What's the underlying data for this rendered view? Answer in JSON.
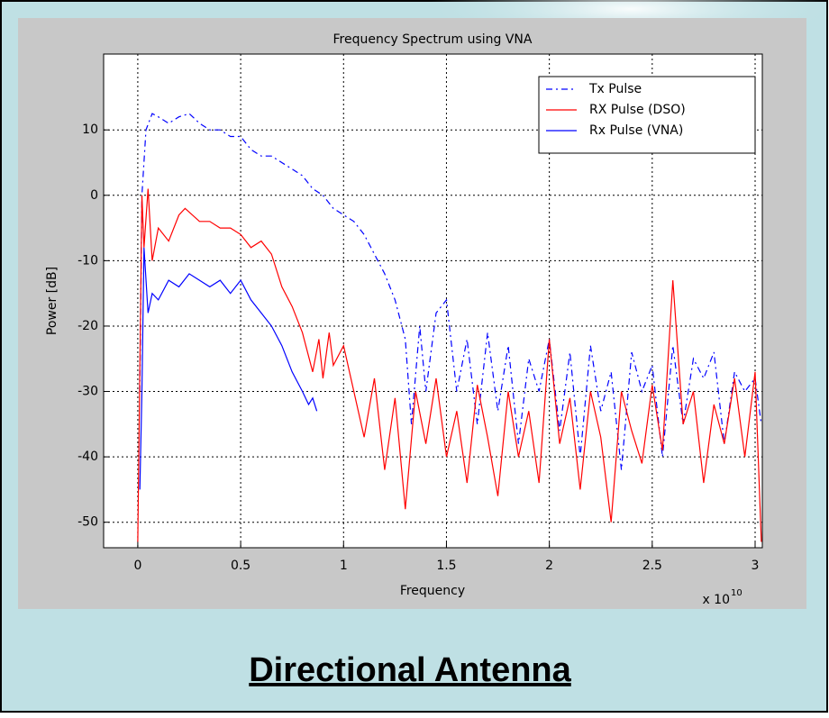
{
  "chart_data": {
    "type": "line",
    "title": "Frequency Spectrum using VNA",
    "xlabel": "Frequency",
    "ylabel": "Power [dB]",
    "x_offset_text": "x 10",
    "x_offset_exponent": "10",
    "xlim": [
      -0.166,
      3.035
    ],
    "ylim": [
      -53.9,
      21.6
    ],
    "xticks": [
      0,
      0.5,
      1,
      1.5,
      2,
      2.5,
      3
    ],
    "yticks": [
      -50,
      -40,
      -30,
      -20,
      -10,
      0,
      10
    ],
    "grid": true,
    "legend": "northeast",
    "series": [
      {
        "name": "Tx Pulse",
        "color": "#0000ff",
        "linestyle": "dashdot",
        "x": [
          0.01,
          0.02,
          0.04,
          0.07,
          0.1,
          0.15,
          0.2,
          0.25,
          0.3,
          0.35,
          0.4,
          0.45,
          0.5,
          0.55,
          0.6,
          0.65,
          0.7,
          0.75,
          0.8,
          0.85,
          0.9,
          0.95,
          1.0,
          1.05,
          1.1,
          1.15,
          1.2,
          1.25,
          1.3,
          1.33,
          1.37,
          1.4,
          1.45,
          1.5,
          1.55,
          1.6,
          1.65,
          1.7,
          1.75,
          1.8,
          1.85,
          1.9,
          1.95,
          2.0,
          2.05,
          2.1,
          2.15,
          2.2,
          2.25,
          2.3,
          2.35,
          2.4,
          2.45,
          2.5,
          2.55,
          2.6,
          2.65,
          2.7,
          2.75,
          2.8,
          2.85,
          2.9,
          2.95,
          3.0,
          3.03
        ],
        "values": [
          -30,
          0,
          10,
          12.5,
          12,
          11,
          12,
          12.5,
          11,
          10,
          10,
          9,
          9,
          7,
          6,
          6,
          5,
          4,
          3,
          1,
          0,
          -2,
          -3,
          -4,
          -6,
          -9,
          -12,
          -16,
          -22,
          -35,
          -20,
          -30,
          -18,
          -16,
          -30,
          -22,
          -35,
          -21,
          -33,
          -23,
          -38,
          -25,
          -30,
          -22,
          -36,
          -24,
          -40,
          -23,
          -33,
          -27,
          -42,
          -24,
          -30,
          -26,
          -40,
          -23,
          -35,
          -25,
          -28,
          -24,
          -38,
          -27,
          -30,
          -28,
          -35
        ]
      },
      {
        "name": "RX Pulse (DSO)",
        "color": "#ff0000",
        "linestyle": "solid",
        "x": [
          0,
          0.02,
          0.03,
          0.05,
          0.07,
          0.1,
          0.15,
          0.2,
          0.23,
          0.3,
          0.35,
          0.4,
          0.45,
          0.5,
          0.55,
          0.6,
          0.65,
          0.7,
          0.75,
          0.8,
          0.85,
          0.88,
          0.9,
          0.93,
          0.95,
          1.0,
          1.05,
          1.1,
          1.15,
          1.2,
          1.25,
          1.3,
          1.35,
          1.4,
          1.45,
          1.5,
          1.55,
          1.6,
          1.65,
          1.7,
          1.75,
          1.8,
          1.85,
          1.9,
          1.95,
          2.0,
          2.05,
          2.1,
          2.15,
          2.2,
          2.25,
          2.3,
          2.35,
          2.4,
          2.45,
          2.5,
          2.55,
          2.6,
          2.65,
          2.7,
          2.75,
          2.8,
          2.85,
          2.9,
          2.95,
          3.0,
          3.03
        ],
        "values": [
          -53,
          0,
          -8,
          1,
          -10,
          -5,
          -7,
          -3,
          -2,
          -4,
          -4,
          -5,
          -5,
          -6,
          -8,
          -7,
          -9,
          -14,
          -17,
          -21,
          -27,
          -22,
          -28,
          -21,
          -26,
          -23,
          -30,
          -37,
          -28,
          -42,
          -31,
          -48,
          -30,
          -38,
          -28,
          -40,
          -33,
          -44,
          -29,
          -37,
          -46,
          -30,
          -40,
          -33,
          -44,
          -22,
          -38,
          -31,
          -45,
          -30,
          -37,
          -50,
          -30,
          -36,
          -41,
          -29,
          -39,
          -13,
          -35,
          -30,
          -44,
          -32,
          -38,
          -28,
          -40,
          -27,
          -53
        ]
      },
      {
        "name": "Rx Pulse (VNA)",
        "color": "#0000ff",
        "linestyle": "solid",
        "x": [
          0.01,
          0.02,
          0.03,
          0.05,
          0.07,
          0.1,
          0.15,
          0.2,
          0.25,
          0.3,
          0.35,
          0.4,
          0.45,
          0.5,
          0.55,
          0.6,
          0.65,
          0.7,
          0.75,
          0.8,
          0.83,
          0.85,
          0.87
        ],
        "values": [
          -45,
          -30,
          -8,
          -18,
          -15,
          -16,
          -13,
          -14,
          -12,
          -13,
          -14,
          -13,
          -15,
          -13,
          -16,
          -18,
          -20,
          -23,
          -27,
          -30,
          -32,
          -31,
          -33
        ]
      }
    ]
  },
  "caption": "Directional Antenna"
}
